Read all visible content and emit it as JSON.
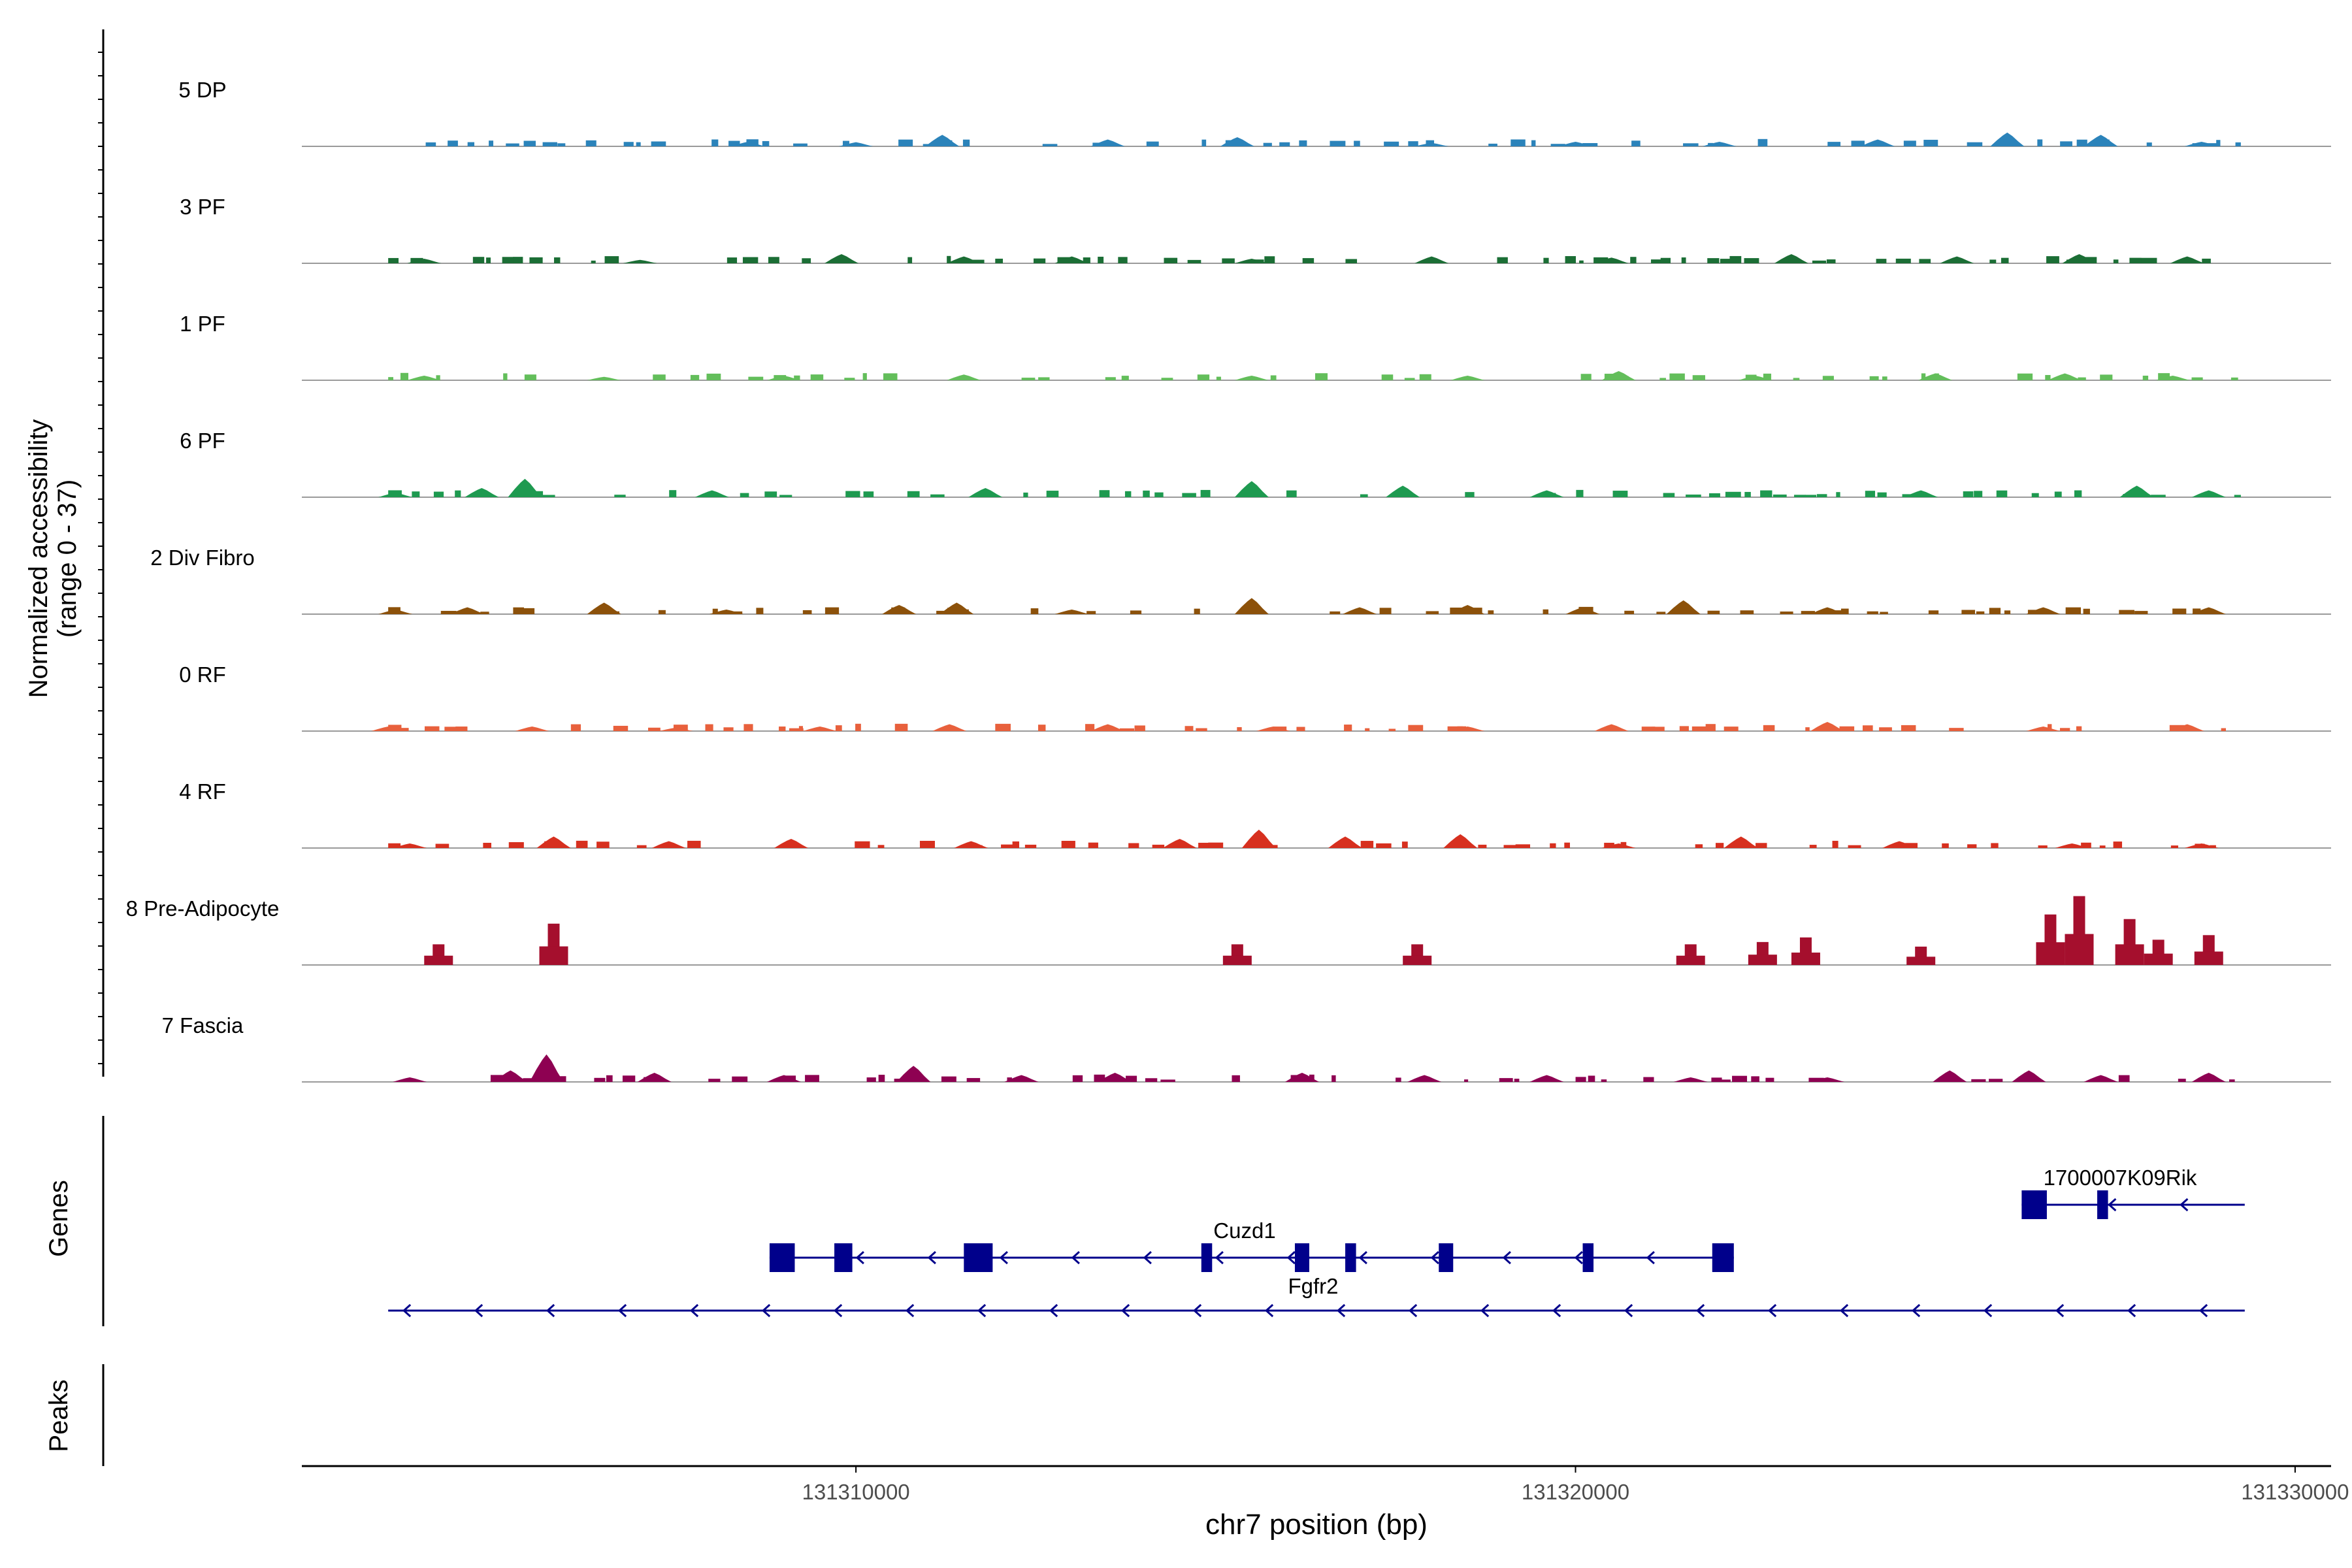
{
  "chart_data": {
    "type": "coverage-track",
    "ylabel_line1": "Normalized accessibility",
    "ylabel_line2": "(range 0 - 37)",
    "y_range": [
      0,
      37
    ],
    "xlabel": "chr7 position (bp)",
    "x_range": [
      131302300,
      131330500
    ],
    "x_ticks": [
      131310000,
      131320000,
      131330000
    ],
    "x_tick_labels": [
      "131310000",
      "131320000",
      "131330000"
    ],
    "region_range": [
      131303500,
      131329300
    ],
    "tracks": [
      {
        "name": "5 DP",
        "color": "#2b83ba",
        "peaks": [
          [
            131308500,
            2
          ],
          [
            131310000,
            1.8
          ],
          [
            131311200,
            5
          ],
          [
            131313500,
            3
          ],
          [
            131315300,
            4
          ],
          [
            131318000,
            1.5
          ],
          [
            131320000,
            2
          ],
          [
            131322000,
            2
          ],
          [
            131324200,
            3
          ],
          [
            131326000,
            6
          ],
          [
            131327300,
            5
          ],
          [
            131328700,
            2
          ]
        ]
      },
      {
        "name": "3 PF",
        "color": "#1b6e35",
        "peaks": [
          [
            131304000,
            2
          ],
          [
            131307000,
            1.5
          ],
          [
            131309800,
            4
          ],
          [
            131311500,
            3
          ],
          [
            131313000,
            3
          ],
          [
            131315500,
            2
          ],
          [
            131318000,
            3
          ],
          [
            131320500,
            2.5
          ],
          [
            131323000,
            4
          ],
          [
            131325300,
            3
          ],
          [
            131327000,
            4
          ],
          [
            131328500,
            3
          ]
        ]
      },
      {
        "name": "1 PF",
        "color": "#63be5b",
        "peaks": [
          [
            131304000,
            2
          ],
          [
            131306500,
            1.5
          ],
          [
            131309000,
            2
          ],
          [
            131311500,
            2.5
          ],
          [
            131315500,
            2
          ],
          [
            131318500,
            2
          ],
          [
            131320600,
            4
          ],
          [
            131322500,
            2
          ],
          [
            131325000,
            3
          ],
          [
            131326800,
            3
          ],
          [
            131328300,
            2
          ]
        ]
      },
      {
        "name": "6 PF",
        "color": "#1e9a50",
        "peaks": [
          [
            131303600,
            2
          ],
          [
            131304800,
            4
          ],
          [
            131305400,
            8
          ],
          [
            131308000,
            3
          ],
          [
            131311800,
            4
          ],
          [
            131315500,
            7
          ],
          [
            131317600,
            5
          ],
          [
            131319600,
            3
          ],
          [
            131324800,
            3
          ],
          [
            131327800,
            5
          ],
          [
            131328800,
            3
          ]
        ]
      },
      {
        "name": "2 Div Fibro",
        "color": "#8c510a",
        "peaks": [
          [
            131303600,
            2
          ],
          [
            131304600,
            3
          ],
          [
            131306500,
            5
          ],
          [
            131308200,
            2
          ],
          [
            131310600,
            4
          ],
          [
            131311400,
            5
          ],
          [
            131313000,
            2
          ],
          [
            131315500,
            7
          ],
          [
            131317000,
            3
          ],
          [
            131318500,
            4
          ],
          [
            131320100,
            3
          ],
          [
            131321500,
            6
          ],
          [
            131323500,
            3
          ],
          [
            131326500,
            3
          ],
          [
            131328800,
            3
          ]
        ]
      },
      {
        "name": "0 RF",
        "color": "#e8603c",
        "peaks": [
          [
            131303500,
            2
          ],
          [
            131305500,
            2
          ],
          [
            131307500,
            1.5
          ],
          [
            131309500,
            2
          ],
          [
            131311300,
            3
          ],
          [
            131313500,
            3
          ],
          [
            131315800,
            2
          ],
          [
            131318500,
            2
          ],
          [
            131320500,
            3
          ],
          [
            131323500,
            4
          ],
          [
            131326500,
            2
          ],
          [
            131328500,
            3
          ]
        ]
      },
      {
        "name": "4 RF",
        "color": "#d7301f",
        "peaks": [
          [
            131303800,
            2
          ],
          [
            131305800,
            5
          ],
          [
            131307400,
            3
          ],
          [
            131309100,
            4
          ],
          [
            131311600,
            3
          ],
          [
            131314500,
            4
          ],
          [
            131315600,
            8
          ],
          [
            131316800,
            5
          ],
          [
            131318400,
            6
          ],
          [
            131320600,
            2
          ],
          [
            131322300,
            5
          ],
          [
            131324500,
            3
          ],
          [
            131326900,
            2
          ],
          [
            131328700,
            2
          ]
        ]
      },
      {
        "name": "8 Pre-Adipocyte",
        "color": "#a50f2d",
        "peaks": [
          [
            131304200,
            9
          ],
          [
            131305800,
            18
          ],
          [
            131315300,
            9
          ],
          [
            131317800,
            9
          ],
          [
            131321600,
            9
          ],
          [
            131322600,
            10
          ],
          [
            131323200,
            12
          ],
          [
            131324800,
            8
          ],
          [
            131326600,
            22
          ],
          [
            131327000,
            30
          ],
          [
            131327700,
            20
          ],
          [
            131328100,
            11
          ],
          [
            131328800,
            13
          ]
        ]
      },
      {
        "name": "7 Fascia",
        "color": "#8e0152",
        "peaks": [
          [
            131303800,
            2
          ],
          [
            131305200,
            5
          ],
          [
            131305700,
            12
          ],
          [
            131307200,
            4
          ],
          [
            131309000,
            3
          ],
          [
            131310800,
            7
          ],
          [
            131312300,
            3
          ],
          [
            131313600,
            4
          ],
          [
            131316200,
            4
          ],
          [
            131317900,
            3
          ],
          [
            131319600,
            3
          ],
          [
            131321600,
            2
          ],
          [
            131323500,
            2
          ],
          [
            131325200,
            5
          ],
          [
            131326300,
            5
          ],
          [
            131327300,
            3
          ],
          [
            131328800,
            4
          ]
        ]
      }
    ],
    "genes": [
      {
        "name": "1700007K09Rik",
        "start": 131326200,
        "end": 131329300,
        "strand": "-",
        "exons": [
          [
            131326200,
            131326550
          ],
          [
            131327250,
            131327400
          ]
        ]
      },
      {
        "name": "Cuzd1",
        "start": 131308800,
        "end": 131322200,
        "strand": "-",
        "exons": [
          [
            131308800,
            131309150
          ],
          [
            131309700,
            131309950
          ],
          [
            131311500,
            131311900
          ],
          [
            131314800,
            131314950
          ],
          [
            131316100,
            131316300
          ],
          [
            131316800,
            131316950
          ],
          [
            131318100,
            131318300
          ],
          [
            131320100,
            131320250
          ],
          [
            131321900,
            131322200
          ]
        ]
      },
      {
        "name": "Fgfr2",
        "start": 131303500,
        "end": 131329300,
        "strand": "-",
        "exons": []
      }
    ],
    "gene_panel_label": "Genes",
    "peaks_panel_label": "Peaks"
  }
}
